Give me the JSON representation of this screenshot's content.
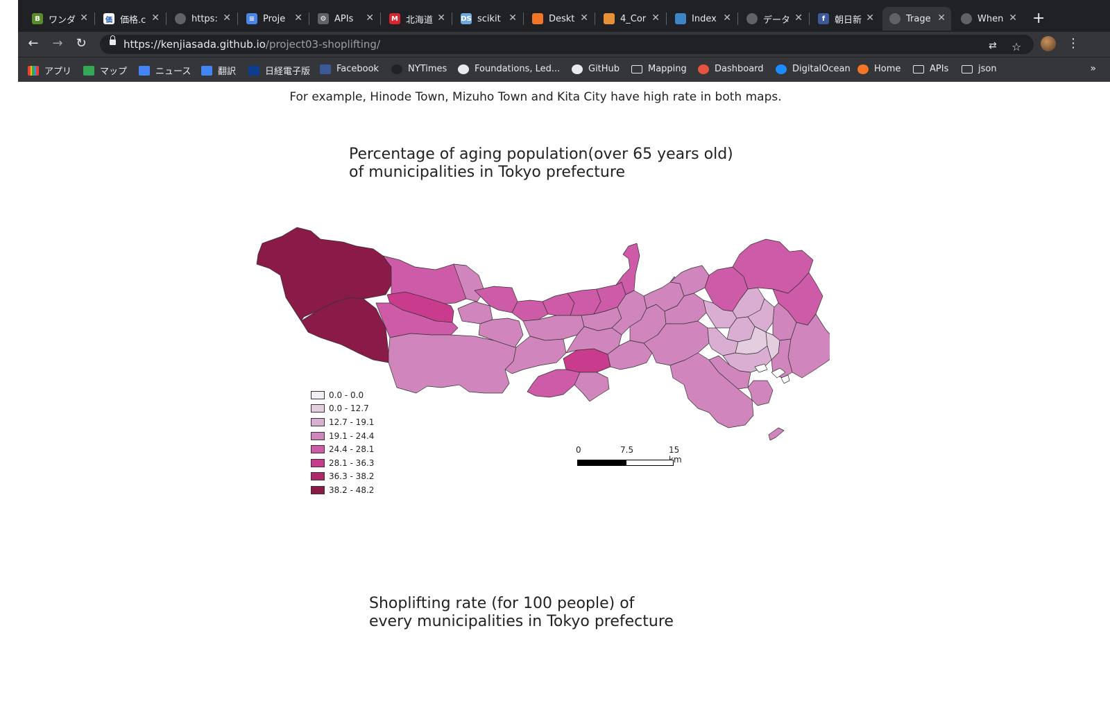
{
  "browser": {
    "tabs": [
      {
        "title": "ワンダ",
        "icon": "hatena-icon",
        "color": "#5b8c2a",
        "glyph": "B"
      },
      {
        "title": "価格.c",
        "icon": "kakaku-icon",
        "color": "#ffffff",
        "glyph": "価"
      },
      {
        "title": "https:",
        "icon": "globe-icon",
        "color": "#5f6368",
        "glyph": ""
      },
      {
        "title": "Proje",
        "icon": "docs-icon",
        "color": "#4a86e8",
        "glyph": "≡"
      },
      {
        "title": "APIs",
        "icon": "gear-icon",
        "color": "#5f6368",
        "glyph": "⚙"
      },
      {
        "title": "北海道",
        "icon": "mainichi-icon",
        "color": "#d9232d",
        "glyph": "M"
      },
      {
        "title": "scikit",
        "icon": "ds-icon",
        "color": "#6fa8dc",
        "glyph": "DS"
      },
      {
        "title": "Deskt",
        "icon": "jupyter-icon",
        "color": "#f37626",
        "glyph": ""
      },
      {
        "title": "4_Cor",
        "icon": "notebook-icon",
        "color": "#e69138",
        "glyph": ""
      },
      {
        "title": "Index",
        "icon": "chart-icon",
        "color": "#3d85c6",
        "glyph": ""
      },
      {
        "title": "データ",
        "icon": "search-icon",
        "color": "#5f6368",
        "glyph": ""
      },
      {
        "title": "朝日新",
        "icon": "facebook-icon",
        "color": "#3b5998",
        "glyph": "f"
      },
      {
        "title": "Trage",
        "icon": "globe-icon",
        "color": "#5f6368",
        "glyph": ""
      },
      {
        "title": "When",
        "icon": "globe-icon",
        "color": "#5f6368",
        "glyph": ""
      }
    ],
    "active_tab": 12,
    "close_glyph": "✕",
    "new_tab_glyph": "+",
    "url_host": "https://kenjiasada.github.io",
    "url_path": "/project03-shoplifting/",
    "bookmarks": [
      {
        "label": "アプリ",
        "icon": "apps-icon",
        "type": "apps"
      },
      {
        "label": "マップ",
        "icon": "maps-icon",
        "type": "maps"
      },
      {
        "label": "ニュース",
        "icon": "news-icon",
        "type": "news"
      },
      {
        "label": "翻訳",
        "icon": "translate-icon",
        "type": "translate"
      },
      {
        "label": "日経電子版",
        "icon": "nikkei-icon",
        "type": "nikkei"
      },
      {
        "label": "Facebook",
        "icon": "facebook-icon",
        "type": "facebook"
      },
      {
        "label": "NYTimes",
        "icon": "nytimes-icon",
        "type": "nyt"
      },
      {
        "label": "Foundations, Led...",
        "icon": "globe-icon",
        "type": "globe"
      },
      {
        "label": "GitHub",
        "icon": "github-icon",
        "type": "github"
      },
      {
        "label": "Mapping",
        "icon": "folder-icon",
        "type": "folder"
      },
      {
        "label": "Dashboard",
        "icon": "dashboard-icon",
        "type": "dash"
      },
      {
        "label": "DigitalOcean",
        "icon": "digitalocean-icon",
        "type": "do"
      },
      {
        "label": "Home",
        "icon": "jupyter-icon",
        "type": "jupyter"
      },
      {
        "label": "APIs",
        "icon": "folder-icon",
        "type": "folder"
      },
      {
        "label": "json",
        "icon": "folder-icon",
        "type": "folder"
      }
    ],
    "more_bookmarks": "»"
  },
  "page": {
    "intro": "For example, Hinode Town, Mizuho Town and Kita City have high rate in both maps.",
    "map1_title": "Percentage of aging population(over 65 years old) of municipalities in Tokyo prefecture",
    "map2_title": "Shoplifting rate (for 100 people) of every municipalities in Tokyo prefecture"
  },
  "legend": [
    {
      "label": "0.0 - 0.0",
      "color": "#f3eef5"
    },
    {
      "label": "0.0 - 12.7",
      "color": "#e5cde0"
    },
    {
      "label": "12.7 - 19.1",
      "color": "#d9aed2"
    },
    {
      "label": "19.1 - 24.4",
      "color": "#d085bd"
    },
    {
      "label": "24.4 - 28.1",
      "color": "#cd5ba8"
    },
    {
      "label": "28.1 - 36.3",
      "color": "#c93b8c"
    },
    {
      "label": "36.3 - 38.2",
      "color": "#ad2a6a"
    },
    {
      "label": "38.2 - 48.2",
      "color": "#8a1a47"
    }
  ],
  "scalebar": {
    "labels": [
      "0",
      "7.5",
      "15 km"
    ]
  }
}
